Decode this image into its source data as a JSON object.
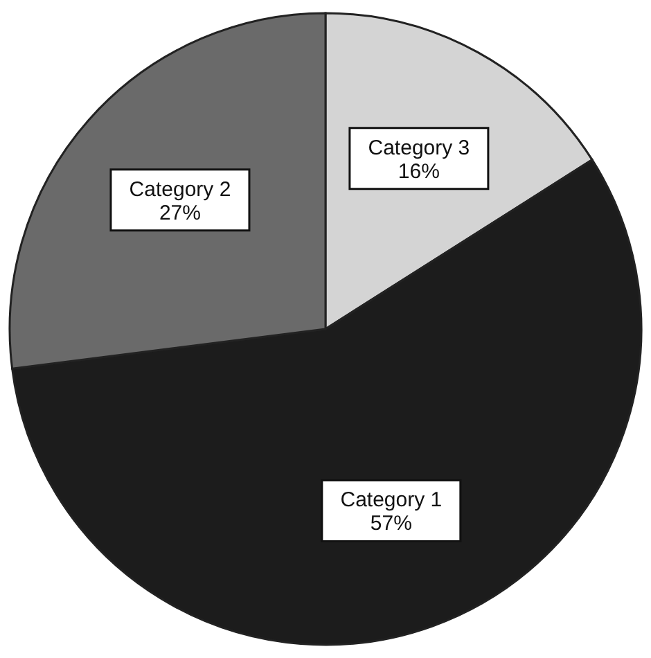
{
  "chart_data": {
    "type": "pie",
    "categories": [
      "Category 3",
      "Category 1",
      "Category 2"
    ],
    "values": [
      16,
      57,
      27
    ],
    "value_labels": [
      "16%",
      "57%",
      "27%"
    ],
    "colors": [
      "#d4d4d4",
      "#1c1c1c",
      "#6a6a6a"
    ]
  }
}
